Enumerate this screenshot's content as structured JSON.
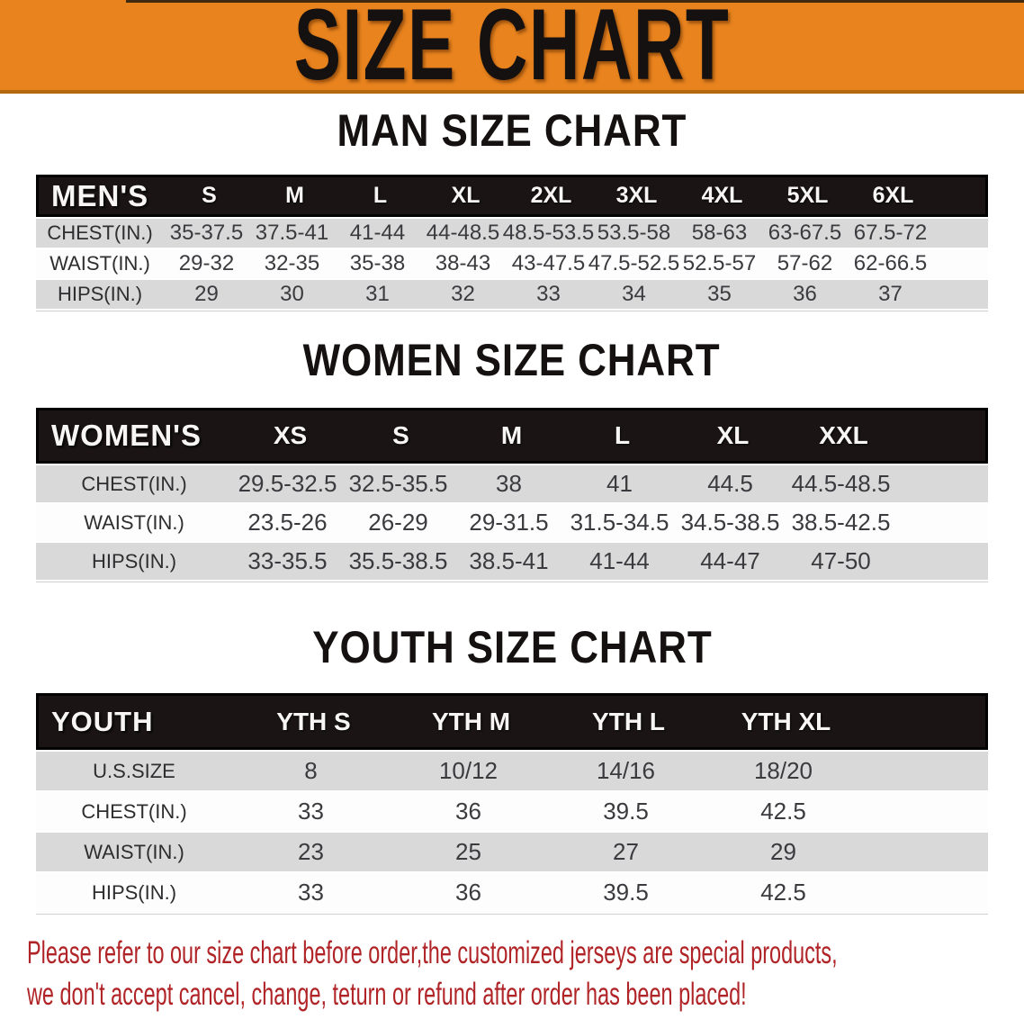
{
  "colors": {
    "banner_orange": "#E8831E",
    "banner_text": "#151110",
    "header_black": "#1A1514",
    "row_gray": "#D9D9D9",
    "note_red": "#B02427"
  },
  "banner": {
    "title": "SIZE CHART"
  },
  "men": {
    "heading": "MAN SIZE CHART",
    "header": [
      "MEN'S",
      "S",
      "M",
      "L",
      "XL",
      "2XL",
      "3XL",
      "4XL",
      "5XL",
      "6XL"
    ],
    "rows": [
      [
        "CHEST(IN.)",
        "35-37.5",
        "37.5-41",
        "41-44",
        "44-48.5",
        "48.5-53.5",
        "53.5-58",
        "58-63",
        "63-67.5",
        "67.5-72"
      ],
      [
        "WAIST(IN.)",
        "29-32",
        "32-35",
        "35-38",
        "38-43",
        "43-47.5",
        "47.5-52.5",
        "52.5-57",
        "57-62",
        "62-66.5"
      ],
      [
        "HIPS(IN.)",
        "29",
        "30",
        "31",
        "32",
        "33",
        "34",
        "35",
        "36",
        "37"
      ]
    ]
  },
  "women": {
    "heading": "WOMEN SIZE CHART",
    "header": [
      "WOMEN'S",
      "XS",
      "S",
      "M",
      "L",
      "XL",
      "XXL"
    ],
    "rows": [
      [
        "CHEST(IN.)",
        "29.5-32.5",
        "32.5-35.5",
        "38",
        "41",
        "44.5",
        "44.5-48.5"
      ],
      [
        "WAIST(IN.)",
        "23.5-26",
        "26-29",
        "29-31.5",
        "31.5-34.5",
        "34.5-38.5",
        "38.5-42.5"
      ],
      [
        "HIPS(IN.)",
        "33-35.5",
        "35.5-38.5",
        "38.5-41",
        "41-44",
        "44-47",
        "47-50"
      ]
    ]
  },
  "youth": {
    "heading": "YOUTH SIZE CHART",
    "header": [
      "YOUTH",
      "YTH S",
      "YTH M",
      "YTH L",
      "YTH XL"
    ],
    "rows": [
      [
        "U.S.SIZE",
        "8",
        "10/12",
        "14/16",
        "18/20"
      ],
      [
        "CHEST(IN.)",
        "33",
        "36",
        "39.5",
        "42.5"
      ],
      [
        "WAIST(IN.)",
        "23",
        "25",
        "27",
        "29"
      ],
      [
        "HIPS(IN.)",
        "33",
        "36",
        "39.5",
        "42.5"
      ]
    ]
  },
  "note": {
    "lines": [
      "Please refer to our size chart before order,the customized jerseys are special products,",
      "we don't accept cancel, change, teturn or refund after order has been placed!"
    ]
  }
}
